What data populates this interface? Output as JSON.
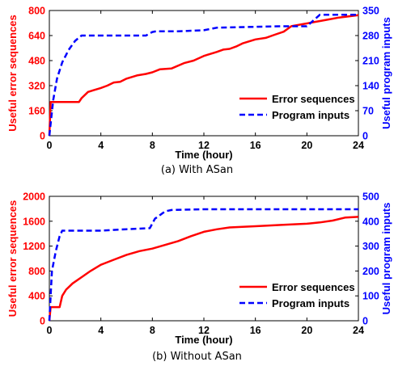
{
  "colors": {
    "error": "#ff0000",
    "program": "#0000ff",
    "axis": "#000000"
  },
  "chart_data": [
    {
      "type": "line",
      "caption": "(a) With ASan",
      "xlabel": "Time (hour)",
      "ylabel_left": "Useful error sequences",
      "ylabel_right": "Useful program inputs",
      "xlim": [
        0,
        24
      ],
      "ylim_left": [
        0,
        800
      ],
      "ylim_right": [
        0,
        350
      ],
      "xticks": [
        0,
        4,
        8,
        12,
        16,
        20,
        24
      ],
      "yticks_left": [
        0,
        160,
        320,
        480,
        640,
        800
      ],
      "yticks_right": [
        0,
        70,
        140,
        210,
        280,
        350
      ],
      "legend_position": "lower-right",
      "series": [
        {
          "name": "Error sequences",
          "axis": "left",
          "style": "solid",
          "color": "#ff0000",
          "x": [
            0,
            0.1,
            2.3,
            2.5,
            3,
            3.4,
            4,
            4.5,
            5,
            5.5,
            6,
            6.8,
            7.5,
            8,
            8.6,
            9.5,
            10.5,
            11.2,
            12,
            13,
            13.5,
            14,
            14.5,
            15,
            16,
            16.8,
            17.5,
            18.2,
            18.8,
            19.5,
            20.5,
            21.5,
            22.5,
            24
          ],
          "values": [
            0,
            215,
            215,
            240,
            280,
            290,
            305,
            320,
            340,
            345,
            365,
            385,
            395,
            405,
            425,
            430,
            465,
            480,
            510,
            535,
            550,
            555,
            570,
            590,
            615,
            625,
            645,
            665,
            700,
            710,
            725,
            740,
            755,
            770
          ]
        },
        {
          "name": "Program inputs",
          "axis": "right",
          "style": "dashed",
          "color": "#0000ff",
          "x": [
            0,
            0.3,
            0.6,
            1,
            1.5,
            2,
            2.5,
            3,
            7.5,
            8,
            8.3,
            10,
            12,
            13,
            18,
            20,
            20.5,
            21,
            24
          ],
          "values": [
            0,
            100,
            160,
            205,
            240,
            265,
            280,
            280,
            280,
            290,
            292,
            292,
            295,
            302,
            306,
            306,
            322,
            338,
            338
          ]
        }
      ]
    },
    {
      "type": "line",
      "caption": "(b) Without ASan",
      "xlabel": "Time (hour)",
      "ylabel_left": "Useful error sequences",
      "ylabel_right": "Useful program inputs",
      "xlim": [
        0,
        24
      ],
      "ylim_left": [
        0,
        2000
      ],
      "ylim_right": [
        0,
        500
      ],
      "xticks": [
        0,
        4,
        8,
        12,
        16,
        20,
        24
      ],
      "yticks_left": [
        0,
        400,
        800,
        1200,
        1600,
        2000
      ],
      "yticks_right": [
        0,
        100,
        200,
        300,
        400,
        500
      ],
      "legend_position": "lower-right",
      "series": [
        {
          "name": "Error sequences",
          "axis": "left",
          "style": "solid",
          "color": "#ff0000",
          "x": [
            0,
            0.1,
            0.8,
            1.0,
            1.3,
            1.8,
            2.5,
            3.2,
            4,
            5,
            6,
            7,
            8,
            9,
            10,
            11,
            12,
            13,
            14,
            16,
            18,
            20,
            21,
            22,
            23,
            24
          ],
          "values": [
            0,
            220,
            220,
            400,
            500,
            600,
            700,
            800,
            900,
            980,
            1060,
            1120,
            1160,
            1220,
            1280,
            1360,
            1430,
            1470,
            1500,
            1520,
            1540,
            1560,
            1580,
            1610,
            1660,
            1670
          ]
        },
        {
          "name": "Program inputs",
          "axis": "right",
          "style": "dashed",
          "color": "#0000ff",
          "x": [
            0,
            0.2,
            0.5,
            0.8,
            1,
            4,
            6,
            7.8,
            8.2,
            9,
            9.5,
            12,
            24
          ],
          "values": [
            0,
            200,
            280,
            340,
            362,
            362,
            368,
            372,
            410,
            440,
            445,
            448,
            448
          ]
        }
      ]
    }
  ]
}
